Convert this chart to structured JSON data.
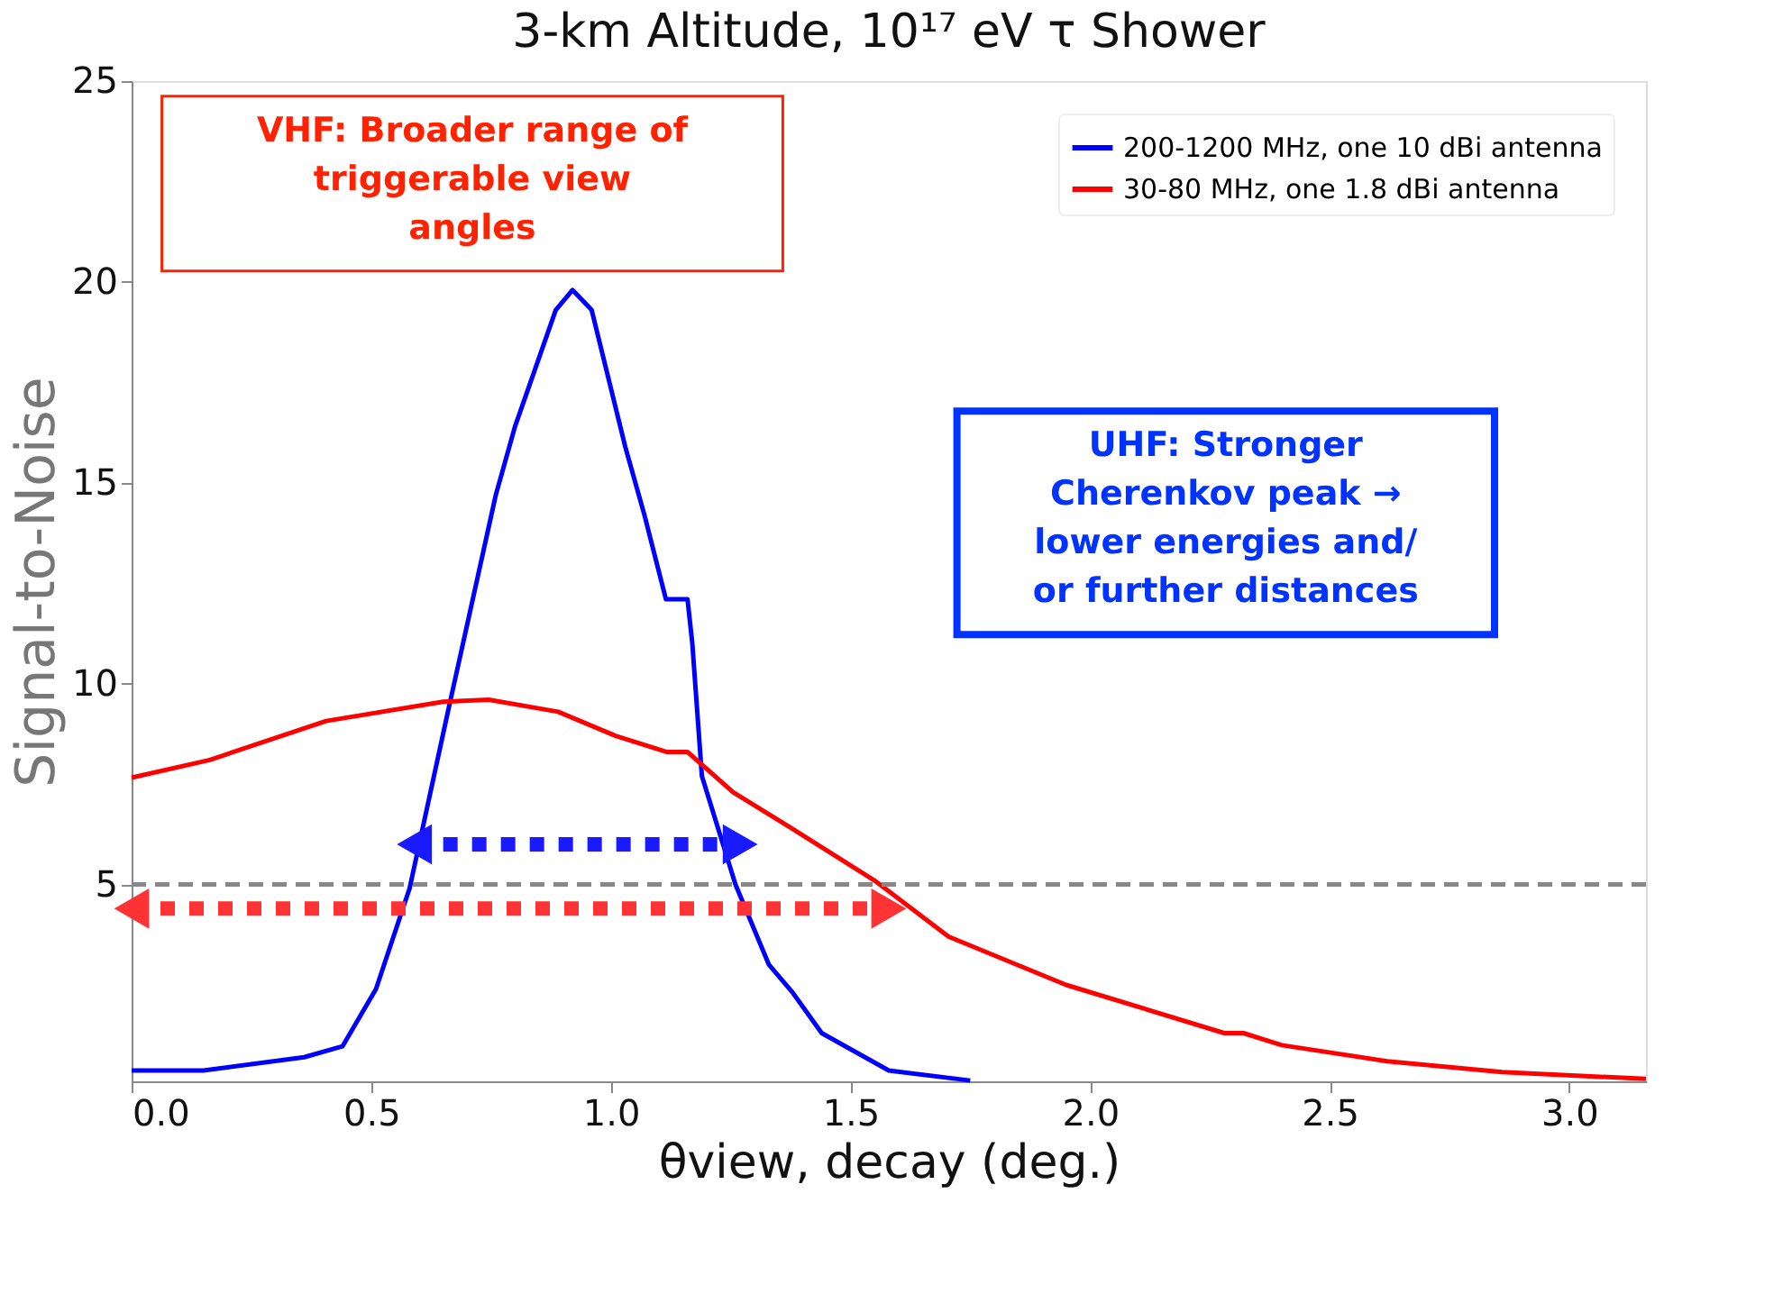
{
  "chart_data": {
    "type": "line",
    "title": "3-km Altitude, 10¹⁷ eV τ Shower",
    "xlabel": "θview, decay (deg.)",
    "ylabel": "Signal-to-Noise",
    "xlim": [
      0,
      3.16
    ],
    "xticks": [
      {
        "value": 0,
        "label": "0.0"
      },
      {
        "value": 0.5,
        "label": "0.5"
      },
      {
        "value": 1,
        "label": "1.0"
      },
      {
        "value": 1.5,
        "label": "1.5"
      },
      {
        "value": 2,
        "label": "2.0"
      },
      {
        "value": 2.5,
        "label": "2.5"
      },
      {
        "value": 3,
        "label": "3.0"
      }
    ],
    "ylim": [
      0.1,
      25
    ],
    "yticks": [
      5,
      10,
      15,
      20,
      25
    ],
    "grid": false,
    "legend": "top right",
    "line_style": "solid",
    "marker": "none",
    "series": [
      {
        "name": "200-1200 MHz, one 10 dBi antenna",
        "color": "#0000ff",
        "x": [
          0,
          0.15,
          0.36,
          0.44,
          0.51,
          0.58,
          0.66,
          0.76,
          0.8,
          0.885,
          0.92,
          0.96,
          1.03,
          1.07,
          1.115,
          1.16,
          1.17,
          1.19,
          1.26,
          1.33,
          1.38,
          1.44,
          1.58,
          1.75
        ],
        "values": [
          0.37,
          0.37,
          0.7,
          0.97,
          2.4,
          4.9,
          9.3,
          14.7,
          16.4,
          19.3,
          19.8,
          19.3,
          15.9,
          14.2,
          12.1,
          12.1,
          11.0,
          7.7,
          5.0,
          3.0,
          2.3,
          1.3,
          0.37,
          0.12
        ]
      },
      {
        "name": "30-80 MHz, one 1.8 dBi antenna",
        "color": "#ff0000",
        "x": [
          0,
          0.163,
          0.406,
          0.65,
          0.745,
          0.89,
          1.01,
          1.116,
          1.16,
          1.255,
          1.377,
          1.55,
          1.705,
          1.95,
          2.28,
          2.32,
          2.4,
          2.62,
          2.86,
          3.16
        ],
        "values": [
          7.66,
          8.1,
          9.07,
          9.55,
          9.6,
          9.3,
          8.7,
          8.3,
          8.3,
          7.3,
          6.4,
          5.1,
          3.7,
          2.5,
          1.3,
          1.3,
          1.0,
          0.6,
          0.33,
          0.16
        ]
      },
      {
        "type": "line",
        "color": "#1a1aff",
        "line_style": "dotted",
        "marker": "triangle",
        "x": [
          0.59,
          1.27
        ],
        "values": [
          6.0,
          6.0
        ]
      },
      {
        "type": "line",
        "color": "#ff3333",
        "line_style": "dotted",
        "marker": "triangle",
        "x": [
          0.0,
          1.58
        ],
        "values": [
          4.4,
          4.4
        ]
      }
    ],
    "ref_lines": [
      {
        "axis": "y",
        "value": 5,
        "color": "#888888",
        "line_style": "dashed"
      }
    ],
    "annotations": [
      "VHF: Broader range of\ntriggerable view\nangles",
      "UHF: Stronger\nCherenkov peak →\nlower energies and/\nor further distances"
    ]
  }
}
